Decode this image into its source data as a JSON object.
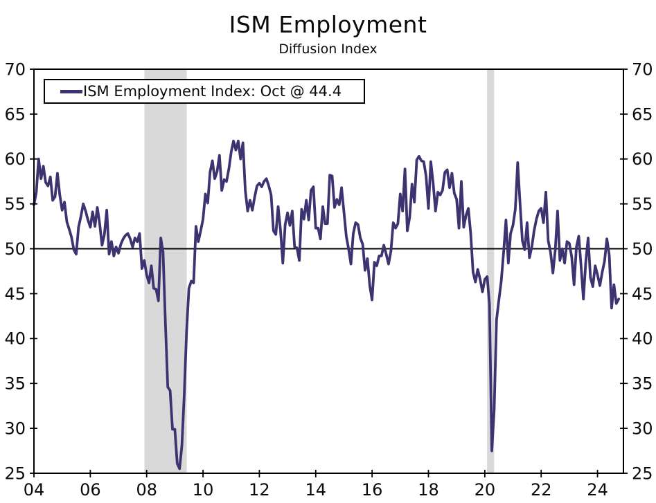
{
  "title": "ISM Employment",
  "subtitle": "Diffusion Index",
  "legend": {
    "label": "ISM Employment Index: Oct @ 44.4"
  },
  "colors": {
    "line": "#3B3470",
    "recession_band": "#D9D9D9",
    "axis": "#000000",
    "reference_line": "#000000",
    "text": "#0a0a0a"
  },
  "chart_data": {
    "type": "line",
    "title": "ISM Employment",
    "subtitle": "Diffusion Index",
    "legend_entries": [
      "ISM Employment Index: Oct @ 44.4"
    ],
    "legend_position": "top-left",
    "grid": false,
    "ylim": [
      25,
      70
    ],
    "yticks": [
      25,
      30,
      35,
      40,
      45,
      50,
      55,
      60,
      65,
      70
    ],
    "y_axis_sides": [
      "left",
      "right"
    ],
    "xlim_years": [
      2004.0,
      2024.92
    ],
    "xtick_years": [
      2004,
      2006,
      2008,
      2010,
      2012,
      2014,
      2016,
      2018,
      2020,
      2022,
      2024
    ],
    "xtick_labels": [
      "04",
      "06",
      "08",
      "10",
      "12",
      "14",
      "16",
      "18",
      "20",
      "22",
      "24"
    ],
    "reference_line": 50,
    "recession_bands": [
      [
        2007.92,
        2009.42
      ],
      [
        2020.08,
        2020.33
      ]
    ],
    "series": [
      {
        "name": "ISM Employment Index",
        "last_point_label": "Oct @ 44.4",
        "start_year": 2004,
        "start_month": 1,
        "frequency": "monthly",
        "values": [
          54.9,
          56.3,
          60.0,
          57.8,
          59.2,
          57.4,
          57.0,
          58.0,
          55.4,
          55.8,
          58.4,
          56.0,
          54.3,
          55.2,
          53.0,
          52.2,
          51.3,
          49.9,
          49.4,
          52.4,
          53.6,
          55.0,
          54.2,
          53.2,
          52.4,
          54.1,
          52.5,
          54.6,
          52.8,
          50.4,
          51.6,
          54.3,
          49.4,
          50.8,
          49.2,
          50.2,
          49.5,
          50.5,
          51.1,
          51.5,
          51.7,
          51.1,
          50.2,
          51.2,
          50.8,
          51.7,
          47.8,
          48.7,
          47.1,
          46.2,
          48.1,
          45.6,
          45.5,
          44.2,
          51.2,
          49.6,
          41.7,
          34.6,
          34.2,
          29.9,
          29.9,
          26.1,
          25.5,
          28.1,
          33.8,
          40.7,
          45.6,
          46.4,
          46.2,
          52.5,
          50.8,
          52.0,
          53.3,
          56.1,
          55.1,
          58.5,
          59.8,
          57.8,
          58.6,
          60.4,
          56.5,
          57.7,
          57.5,
          58.9,
          60.8,
          62.0,
          61.0,
          62.0,
          60.0,
          61.8,
          56.5,
          54.2,
          55.4,
          54.3,
          55.8,
          57.0,
          57.3,
          56.9,
          57.5,
          57.8,
          57.0,
          56.0,
          52.0,
          51.6,
          54.7,
          52.1,
          48.4,
          52.7,
          54.0,
          52.6,
          54.2,
          50.2,
          50.1,
          48.7,
          54.4,
          53.3,
          55.4,
          53.2,
          56.5,
          56.9,
          52.3,
          52.3,
          51.1,
          54.7,
          52.8,
          52.8,
          58.2,
          58.1,
          54.6,
          55.5,
          54.9,
          56.8,
          54.1,
          51.4,
          50.0,
          48.3,
          51.7,
          52.9,
          52.7,
          51.2,
          50.5,
          47.6,
          48.9,
          45.9,
          44.3,
          48.5,
          48.1,
          49.2,
          49.2,
          50.4,
          49.4,
          48.3,
          49.7,
          52.9,
          52.3,
          52.8,
          56.1,
          54.2,
          58.9,
          52.0,
          53.5,
          57.2,
          55.2,
          59.9,
          60.3,
          59.8,
          59.7,
          58.1,
          54.5,
          59.7,
          57.3,
          54.2,
          56.3,
          56.0,
          56.5,
          58.5,
          58.8,
          56.8,
          58.4,
          56.2,
          55.5,
          52.3,
          57.5,
          52.4,
          53.7,
          54.5,
          51.7,
          47.4,
          46.3,
          47.7,
          46.6,
          45.2,
          46.6,
          46.9,
          43.8,
          27.5,
          32.1,
          42.1,
          44.3,
          46.4,
          49.6,
          53.2,
          48.4,
          51.7,
          52.6,
          54.4,
          59.6,
          55.1,
          50.9,
          49.9,
          52.9,
          49.0,
          50.2,
          52.0,
          53.3,
          54.2,
          54.5,
          52.9,
          56.3,
          50.9,
          49.6,
          47.3,
          49.9,
          54.2,
          48.7,
          50.0,
          48.4,
          50.8,
          50.6,
          49.1,
          46.0,
          50.2,
          51.4,
          48.1,
          44.4,
          48.5,
          51.2,
          46.8,
          45.8,
          48.1,
          47.1,
          45.9,
          47.4,
          48.6,
          51.1,
          49.3,
          43.4,
          46.0,
          43.9,
          44.4
        ]
      }
    ]
  }
}
